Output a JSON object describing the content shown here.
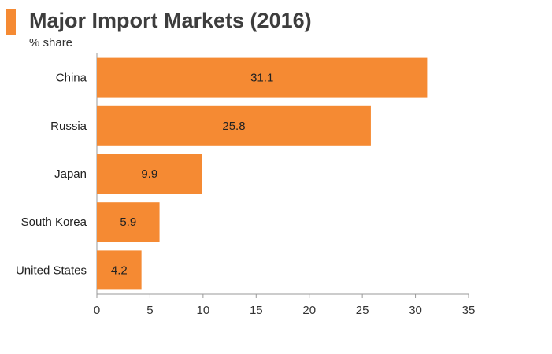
{
  "header": {
    "title": "Major Import Markets (2016)",
    "subtitle": "% share",
    "accent_color": "#f58a33"
  },
  "chart_data": {
    "type": "bar",
    "orientation": "horizontal",
    "title": "Major Import Markets (2016)",
    "subtitle": "% share",
    "categories": [
      "China",
      "Russia",
      "Japan",
      "South Korea",
      "United States"
    ],
    "values": [
      31.1,
      25.8,
      9.9,
      5.9,
      4.2
    ],
    "value_labels": [
      "31.1",
      "25.8",
      "9.9",
      "5.9",
      "4.2"
    ],
    "xlim": [
      0,
      35
    ],
    "xticks": [
      0,
      5,
      10,
      15,
      20,
      25,
      30,
      35
    ],
    "grid": false,
    "legend": "none",
    "bar_color": "#f58a33"
  }
}
